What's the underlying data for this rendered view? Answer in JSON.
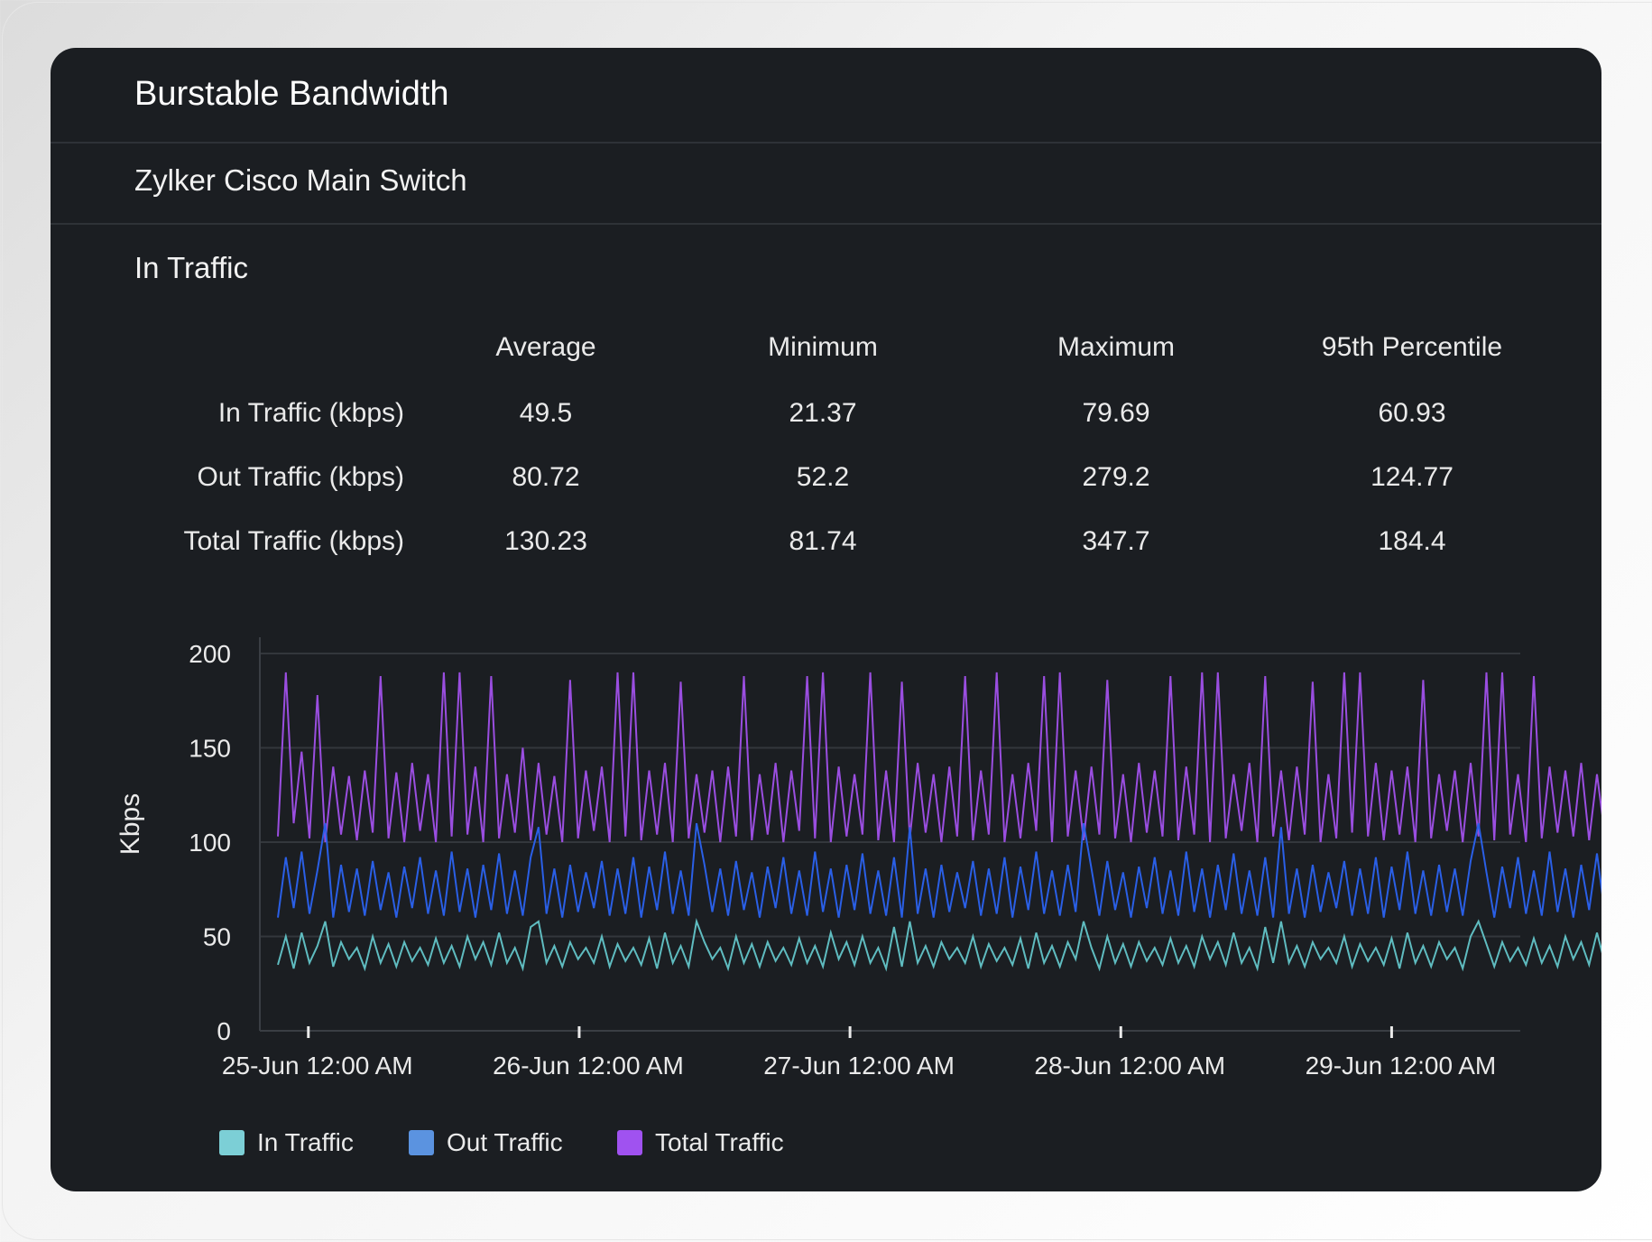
{
  "card": {
    "title": "Burstable Bandwidth",
    "device": "Zylker Cisco Main Switch",
    "section": "In Traffic"
  },
  "table": {
    "headers": [
      "Average",
      "Minimum",
      "Maximum",
      "95th Percentile"
    ],
    "rows": [
      {
        "label": "In Traffic (kbps)",
        "values": [
          "49.5",
          "21.37",
          "79.69",
          "60.93"
        ]
      },
      {
        "label": "Out Traffic (kbps)",
        "values": [
          "80.72",
          "52.2",
          "279.2",
          "124.77"
        ]
      },
      {
        "label": "Total Traffic (kbps)",
        "values": [
          "130.23",
          "81.74",
          "347.7",
          "184.4"
        ]
      }
    ]
  },
  "chart_data": {
    "type": "line",
    "ylabel": "Kbps",
    "xlabel": "",
    "ylim": [
      0,
      200
    ],
    "yticks": [
      "0",
      "50",
      "100",
      "150",
      "200"
    ],
    "xticks": [
      {
        "hour": 0,
        "label": "25-Jun 12:00 AM"
      },
      {
        "hour": 24,
        "label": "26-Jun 12:00 AM"
      },
      {
        "hour": 48,
        "label": "27-Jun 12:00 AM"
      },
      {
        "hour": 72,
        "label": "28-Jun 12:00 AM"
      },
      {
        "hour": 96,
        "label": "29-Jun 12:00 AM"
      }
    ],
    "xlim_hours": [
      -4.3,
      107.4
    ],
    "x_start_hour": -2.7,
    "x_step_hours": 0.7,
    "grid": true,
    "legend_position": "bottom-left",
    "series": [
      {
        "name": "In Traffic",
        "color": "#5fbcc0",
        "legend_color": "#7ccfd6",
        "values": [
          35,
          50,
          33,
          52,
          36,
          45,
          58,
          34,
          47,
          38,
          44,
          33,
          50,
          36,
          46,
          34,
          47,
          37,
          44,
          35,
          49,
          36,
          45,
          34,
          50,
          38,
          47,
          35,
          52,
          36,
          44,
          33,
          55,
          58,
          36,
          45,
          34,
          47,
          38,
          44,
          36,
          50,
          34,
          46,
          37,
          44,
          35,
          49,
          33,
          52,
          36,
          45,
          34,
          58,
          47,
          38,
          44,
          33,
          50,
          36,
          46,
          34,
          47,
          37,
          44,
          35,
          49,
          36,
          45,
          34,
          52,
          38,
          47,
          35,
          50,
          36,
          44,
          33,
          55,
          34,
          58,
          36,
          45,
          34,
          47,
          38,
          44,
          36,
          50,
          34,
          46,
          37,
          44,
          35,
          49,
          33,
          52,
          36,
          45,
          34,
          47,
          38,
          58,
          44,
          33,
          50,
          36,
          46,
          34,
          47,
          37,
          44,
          35,
          49,
          36,
          45,
          34,
          50,
          38,
          47,
          35,
          52,
          36,
          44,
          33,
          55,
          36,
          58,
          36,
          45,
          34,
          47,
          38,
          44,
          36,
          50,
          34,
          46,
          37,
          44,
          35,
          49,
          33,
          52,
          36,
          45,
          34,
          47,
          38,
          44,
          33,
          50,
          58,
          46,
          34,
          47,
          37,
          44,
          35,
          49,
          36,
          45,
          34,
          50,
          38,
          47,
          35,
          52,
          36,
          44,
          33,
          52,
          36
        ]
      },
      {
        "name": "Out Traffic",
        "color": "#2a5fe6",
        "legend_color": "#5b93e0",
        "values": [
          60,
          92,
          65,
          95,
          62,
          85,
          110,
          60,
          88,
          63,
          86,
          61,
          90,
          64,
          84,
          60,
          87,
          65,
          92,
          62,
          85,
          61,
          95,
          63,
          86,
          60,
          88,
          64,
          94,
          62,
          85,
          61,
          92,
          108,
          62,
          86,
          60,
          88,
          63,
          84,
          65,
          90,
          61,
          86,
          62,
          92,
          60,
          87,
          64,
          95,
          62,
          85,
          61,
          110,
          88,
          63,
          86,
          61,
          90,
          64,
          84,
          60,
          87,
          65,
          92,
          62,
          85,
          61,
          95,
          63,
          86,
          60,
          88,
          64,
          94,
          62,
          85,
          61,
          92,
          60,
          108,
          62,
          86,
          60,
          88,
          63,
          84,
          65,
          90,
          61,
          86,
          62,
          92,
          60,
          87,
          64,
          95,
          62,
          85,
          61,
          88,
          63,
          110,
          86,
          61,
          90,
          64,
          84,
          60,
          87,
          65,
          92,
          62,
          85,
          61,
          95,
          63,
          86,
          60,
          88,
          64,
          94,
          62,
          85,
          61,
          92,
          60,
          108,
          62,
          86,
          60,
          88,
          63,
          84,
          65,
          90,
          61,
          86,
          62,
          92,
          60,
          87,
          64,
          95,
          62,
          85,
          61,
          88,
          63,
          86,
          61,
          90,
          110,
          84,
          60,
          87,
          65,
          92,
          62,
          85,
          61,
          95,
          63,
          86,
          60,
          88,
          64,
          94,
          62,
          85,
          61,
          95,
          60
        ]
      },
      {
        "name": "Total Traffic",
        "color": "#9a4ee0",
        "legend_color": "#a052f0",
        "values": [
          103,
          190,
          110,
          148,
          102,
          178,
          100,
          140,
          104,
          135,
          101,
          138,
          105,
          188,
          102,
          137,
          100,
          142,
          106,
          136,
          100,
          190,
          103,
          190,
          104,
          140,
          100,
          188,
          102,
          136,
          105,
          150,
          101,
          142,
          104,
          135,
          100,
          186,
          102,
          138,
          106,
          140,
          100,
          190,
          103,
          190,
          101,
          138,
          104,
          142,
          100,
          185,
          102,
          136,
          105,
          138,
          100,
          140,
          103,
          188,
          101,
          136,
          104,
          142,
          100,
          138,
          106,
          188,
          102,
          190,
          100,
          140,
          103,
          136,
          104,
          190,
          101,
          138,
          100,
          185,
          102,
          142,
          105,
          136,
          100,
          140,
          103,
          188,
          101,
          138,
          104,
          190,
          100,
          136,
          102,
          142,
          106,
          188,
          100,
          190,
          103,
          138,
          101,
          140,
          104,
          186,
          102,
          136,
          100,
          142,
          105,
          138,
          103,
          188,
          101,
          140,
          104,
          190,
          100,
          190,
          102,
          136,
          106,
          142,
          100,
          188,
          103,
          138,
          101,
          140,
          104,
          185,
          100,
          136,
          102,
          190,
          105,
          190,
          103,
          142,
          101,
          138,
          104,
          140,
          100,
          186,
          102,
          136,
          106,
          138,
          100,
          142,
          103,
          190,
          101,
          190,
          104,
          136,
          100,
          188,
          102,
          140,
          105,
          138,
          103,
          142,
          101,
          136,
          104,
          140,
          100,
          190,
          103
        ]
      }
    ]
  }
}
